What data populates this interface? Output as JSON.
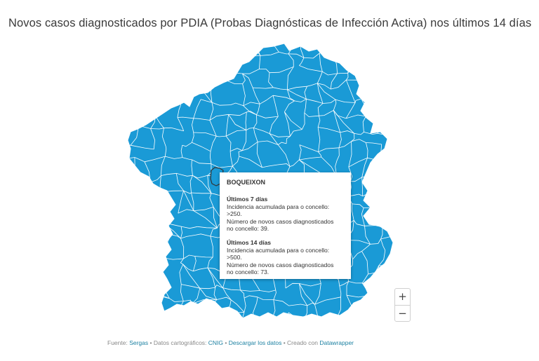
{
  "title": "Novos casos diagnosticados por PDIA (Probas Diagnósticas de Infección Activa) nos últimos 14 días",
  "map": {
    "fill_color": "#1a9ad6",
    "border_color": "#ffffff",
    "highlight_border_color": "#333333"
  },
  "tooltip": {
    "place": "BOQUEIXON",
    "period_7": "Últimos 7 días",
    "incidence_label_7": "Incidencia acumulada para o concello:",
    "incidence_value_7": ">250.",
    "cases_label_7": "Número de novos casos diagnosticados",
    "cases_value_7": "no concello: 39.",
    "period_14": "Últimos 14 días",
    "incidence_label_14": "Incidencia acumulada para o concello:",
    "incidence_value_14": ">500.",
    "cases_label_14": "Número de novos casos diagnosticados",
    "cases_value_14": "no concello: 73."
  },
  "zoom": {
    "zoom_in_label": "+",
    "zoom_out_label": "−"
  },
  "footer": {
    "source_prefix": "Fuente: ",
    "source_link": "Sergas",
    "separator_1": " • Datos cartográficos: ",
    "map_data_link": "CNIG",
    "separator_2": " • ",
    "download_link": "Descargar los datos",
    "separator_3": " • Creado con ",
    "tool_link": "Datawrapper"
  }
}
